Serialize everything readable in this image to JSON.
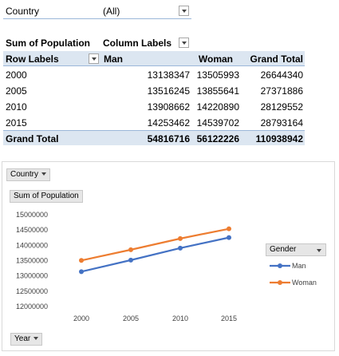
{
  "filter": {
    "label": "Country",
    "value": "(All)"
  },
  "pivot": {
    "sum_label": "Sum of Population",
    "column_labels": "Column Labels",
    "row_labels": "Row Labels",
    "columns": [
      "Man",
      "Woman",
      "Grand Total"
    ],
    "rows": [
      {
        "label": "2000",
        "values": [
          "13138347",
          "13505993",
          "26644340"
        ]
      },
      {
        "label": "2005",
        "values": [
          "13516245",
          "13855641",
          "27371886"
        ]
      },
      {
        "label": "2010",
        "values": [
          "13908662",
          "14220890",
          "28129552"
        ]
      },
      {
        "label": "2015",
        "values": [
          "14253462",
          "14539702",
          "28793164"
        ]
      }
    ],
    "total": {
      "label": "Grand Total",
      "values": [
        "54816716",
        "56122226",
        "110938942"
      ]
    }
  },
  "chart_buttons": {
    "country": "Country",
    "sum": "Sum of Population",
    "year": "Year",
    "legend_title": "Gender"
  },
  "colors": {
    "man": "#4472c4",
    "woman": "#ed7d31",
    "header_band": "#dce6f1"
  },
  "chart_data": {
    "type": "line",
    "categories": [
      "2000",
      "2005",
      "2010",
      "2015"
    ],
    "series": [
      {
        "name": "Man",
        "values": [
          13138347,
          13516245,
          13908662,
          14253462
        ]
      },
      {
        "name": "Woman",
        "values": [
          13505993,
          13855641,
          14220890,
          14539702
        ]
      }
    ],
    "y_ticks": [
      "15000000",
      "14500000",
      "14000000",
      "13500000",
      "13000000",
      "12500000",
      "12000000"
    ],
    "ylim": [
      12000000,
      15000000
    ],
    "legend_position": "right",
    "grid": false
  }
}
